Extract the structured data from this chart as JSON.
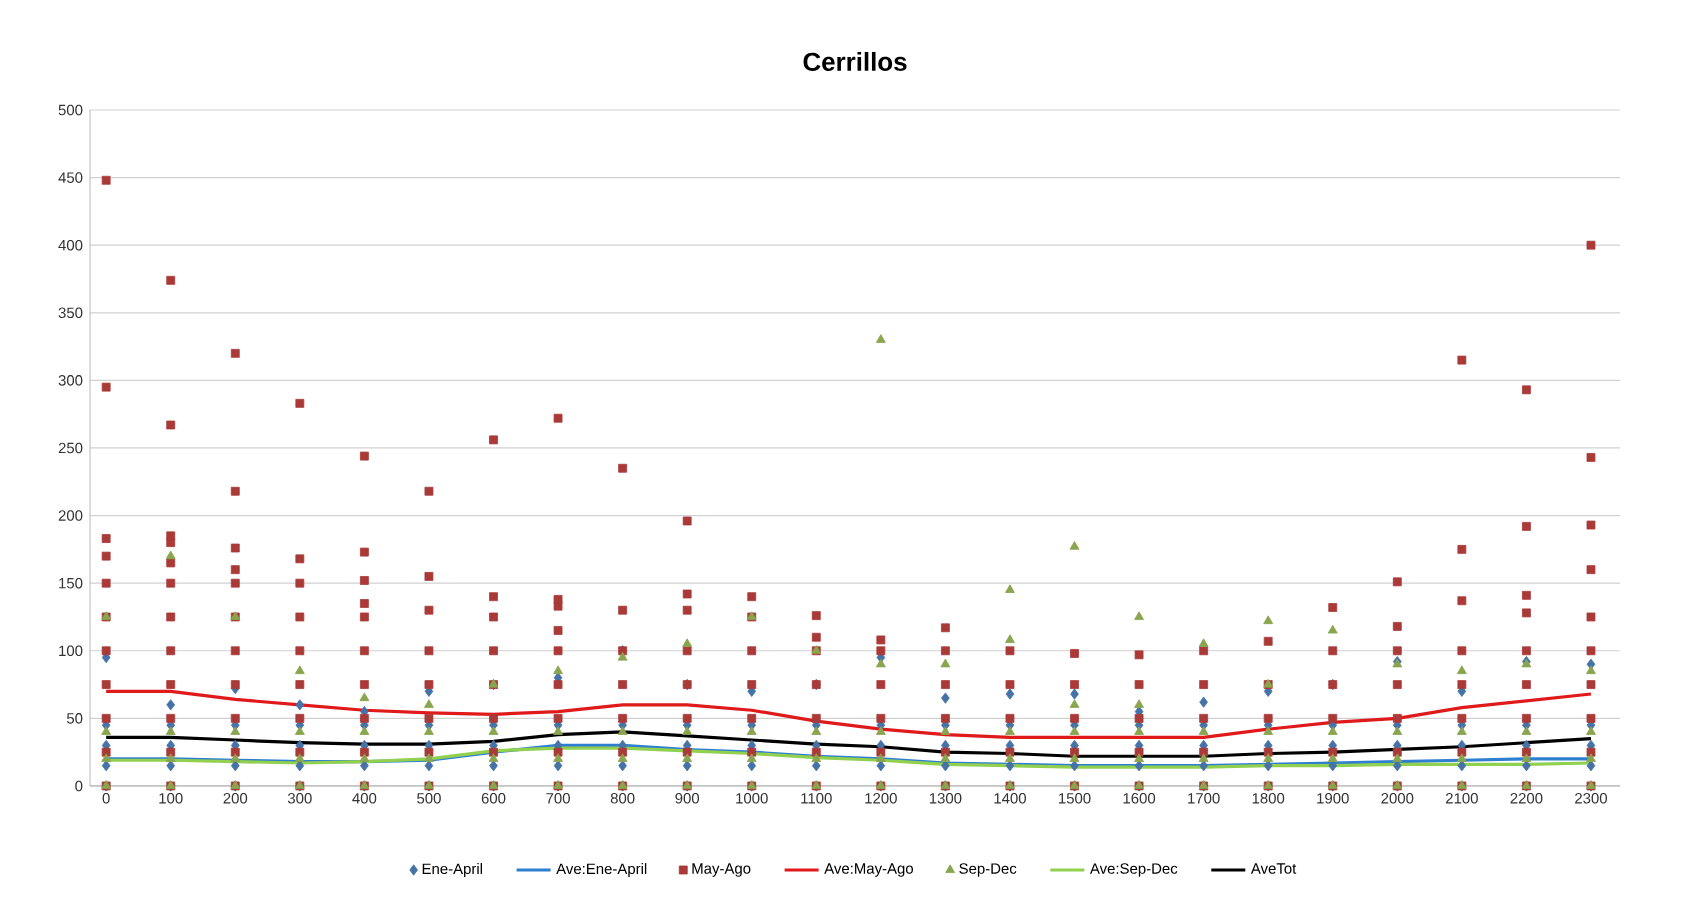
{
  "chart_data": {
    "type": "scatter",
    "title": "Cerrillos",
    "x": [
      0,
      100,
      200,
      300,
      400,
      500,
      600,
      700,
      800,
      900,
      1000,
      1100,
      1200,
      1300,
      1400,
      1500,
      1600,
      1700,
      1800,
      1900,
      2000,
      2100,
      2200,
      2300
    ],
    "xlim": [
      -25,
      2345
    ],
    "xticks": [
      0,
      100,
      200,
      300,
      400,
      500,
      600,
      700,
      800,
      900,
      1000,
      1100,
      1200,
      1300,
      1400,
      1500,
      1600,
      1700,
      1800,
      1900,
      2000,
      2100,
      2200,
      2300
    ],
    "ylim": [
      0,
      500
    ],
    "yticks": [
      0,
      50,
      100,
      150,
      200,
      250,
      300,
      350,
      400,
      450,
      500
    ],
    "grid": "y",
    "legend": "bottom",
    "series": [
      {
        "name": "Ene-April",
        "marker": "diamond",
        "color": "#4572a7",
        "x": [
          0,
          0,
          0,
          0,
          0,
          100,
          100,
          100,
          100,
          100,
          200,
          200,
          200,
          200,
          200,
          300,
          300,
          300,
          300,
          300,
          400,
          400,
          400,
          400,
          400,
          500,
          500,
          500,
          500,
          500,
          600,
          600,
          600,
          600,
          600,
          700,
          700,
          700,
          700,
          700,
          800,
          800,
          800,
          800,
          800,
          900,
          900,
          900,
          900,
          900,
          1000,
          1000,
          1000,
          1000,
          1000,
          1100,
          1100,
          1100,
          1100,
          1100,
          1200,
          1200,
          1200,
          1200,
          1200,
          1300,
          1300,
          1300,
          1300,
          1300,
          1400,
          1400,
          1400,
          1400,
          1400,
          1500,
          1500,
          1500,
          1500,
          1500,
          1600,
          1600,
          1600,
          1600,
          1600,
          1700,
          1700,
          1700,
          1700,
          1700,
          1800,
          1800,
          1800,
          1800,
          1800,
          1900,
          1900,
          1900,
          1900,
          1900,
          2000,
          2000,
          2000,
          2000,
          2000,
          2100,
          2100,
          2100,
          2100,
          2100,
          2200,
          2200,
          2200,
          2200,
          2200,
          2300,
          2300,
          2300,
          2300,
          2300
        ],
        "values": [
          0,
          15,
          30,
          45,
          95,
          0,
          15,
          30,
          45,
          60,
          0,
          15,
          30,
          45,
          72,
          0,
          15,
          30,
          45,
          60,
          0,
          15,
          30,
          45,
          55,
          0,
          15,
          30,
          45,
          70,
          0,
          15,
          30,
          45,
          75,
          0,
          15,
          30,
          45,
          80,
          0,
          15,
          30,
          45,
          100,
          0,
          15,
          30,
          45,
          75,
          0,
          15,
          30,
          45,
          70,
          0,
          15,
          30,
          45,
          75,
          0,
          15,
          30,
          45,
          95,
          0,
          15,
          30,
          45,
          65,
          0,
          15,
          30,
          45,
          68,
          0,
          15,
          30,
          45,
          68,
          0,
          15,
          30,
          45,
          55,
          0,
          15,
          30,
          45,
          62,
          0,
          15,
          30,
          45,
          70,
          0,
          15,
          30,
          45,
          75,
          0,
          15,
          30,
          45,
          92,
          0,
          15,
          30,
          45,
          70,
          0,
          15,
          30,
          45,
          92,
          0,
          15,
          30,
          45,
          90
        ]
      },
      {
        "name": "Ave:Ene-April",
        "type": "line",
        "color": "#2e7fd0",
        "values": [
          20,
          20,
          19,
          18,
          18,
          19,
          25,
          30,
          30,
          27,
          25,
          22,
          20,
          17,
          16,
          15,
          15,
          15,
          16,
          17,
          18,
          19,
          20,
          20
        ]
      },
      {
        "name": "May-Ago",
        "marker": "square",
        "color": "#aa3a38",
        "x": [
          0,
          0,
          0,
          0,
          0,
          0,
          0,
          0,
          0,
          0,
          0,
          100,
          100,
          100,
          100,
          100,
          100,
          100,
          100,
          100,
          100,
          100,
          100,
          200,
          200,
          200,
          200,
          200,
          200,
          200,
          200,
          200,
          200,
          200,
          300,
          300,
          300,
          300,
          300,
          300,
          300,
          300,
          300,
          400,
          400,
          400,
          400,
          400,
          400,
          400,
          400,
          400,
          400,
          500,
          500,
          500,
          500,
          500,
          500,
          500,
          500,
          600,
          600,
          600,
          600,
          600,
          600,
          600,
          600,
          700,
          700,
          700,
          700,
          700,
          700,
          700,
          700,
          700,
          800,
          800,
          800,
          800,
          800,
          800,
          800,
          900,
          900,
          900,
          900,
          900,
          900,
          900,
          900,
          1000,
          1000,
          1000,
          1000,
          1000,
          1000,
          1000,
          1100,
          1100,
          1100,
          1100,
          1100,
          1100,
          1100,
          1200,
          1200,
          1200,
          1200,
          1200,
          1200,
          1300,
          1300,
          1300,
          1300,
          1300,
          1300,
          1400,
          1400,
          1400,
          1400,
          1400,
          1500,
          1500,
          1500,
          1500,
          1500,
          1600,
          1600,
          1600,
          1600,
          1600,
          1700,
          1700,
          1700,
          1700,
          1700,
          1800,
          1800,
          1800,
          1800,
          1800,
          1900,
          1900,
          1900,
          1900,
          1900,
          1900,
          2000,
          2000,
          2000,
          2000,
          2000,
          2000,
          2000,
          2100,
          2100,
          2100,
          2100,
          2100,
          2100,
          2100,
          2100,
          2200,
          2200,
          2200,
          2200,
          2200,
          2200,
          2200,
          2200,
          2200,
          2300,
          2300,
          2300,
          2300,
          2300,
          2300,
          2300,
          2300,
          2300,
          2300
        ],
        "values": [
          0,
          25,
          50,
          75,
          100,
          125,
          150,
          170,
          183,
          295,
          448,
          0,
          25,
          50,
          75,
          100,
          125,
          150,
          165,
          180,
          185,
          267,
          374,
          0,
          25,
          50,
          75,
          100,
          125,
          150,
          160,
          176,
          218,
          320,
          0,
          25,
          50,
          75,
          100,
          125,
          150,
          168,
          283,
          0,
          25,
          50,
          75,
          100,
          125,
          135,
          152,
          173,
          244,
          0,
          25,
          50,
          75,
          100,
          130,
          155,
          218,
          0,
          25,
          50,
          75,
          100,
          125,
          140,
          256,
          0,
          25,
          50,
          75,
          100,
          115,
          133,
          138,
          272,
          0,
          25,
          50,
          75,
          100,
          130,
          235,
          0,
          25,
          50,
          75,
          100,
          130,
          142,
          196,
          0,
          25,
          50,
          75,
          100,
          125,
          140,
          0,
          25,
          50,
          75,
          100,
          110,
          126,
          0,
          25,
          50,
          75,
          100,
          108,
          0,
          25,
          50,
          75,
          100,
          117,
          0,
          25,
          50,
          75,
          100,
          0,
          25,
          50,
          75,
          98,
          0,
          25,
          50,
          75,
          97,
          0,
          25,
          50,
          75,
          100,
          0,
          25,
          50,
          75,
          107,
          0,
          25,
          50,
          75,
          100,
          132,
          0,
          25,
          50,
          75,
          100,
          118,
          151,
          0,
          25,
          50,
          75,
          100,
          137,
          175,
          315,
          0,
          25,
          50,
          75,
          100,
          128,
          141,
          192,
          293,
          0,
          25,
          50,
          75,
          100,
          125,
          160,
          193,
          243,
          400
        ]
      },
      {
        "name": "Ave:May-Ago",
        "type": "line",
        "color": "#e01a1a",
        "values": [
          70,
          70,
          64,
          60,
          56,
          54,
          53,
          55,
          60,
          60,
          56,
          48,
          42,
          38,
          36,
          36,
          36,
          36,
          42,
          47,
          50,
          58,
          63,
          68
        ]
      },
      {
        "name": "Sep-Dec",
        "marker": "triangle",
        "color": "#89a54e",
        "x": [
          0,
          0,
          0,
          0,
          100,
          100,
          100,
          100,
          200,
          200,
          200,
          200,
          300,
          300,
          300,
          300,
          400,
          400,
          400,
          400,
          500,
          500,
          500,
          500,
          600,
          600,
          600,
          600,
          700,
          700,
          700,
          700,
          800,
          800,
          800,
          800,
          900,
          900,
          900,
          900,
          1000,
          1000,
          1000,
          1000,
          1100,
          1100,
          1100,
          1100,
          1200,
          1200,
          1200,
          1200,
          1200,
          1300,
          1300,
          1300,
          1300,
          1400,
          1400,
          1400,
          1400,
          1400,
          1500,
          1500,
          1500,
          1500,
          1500,
          1600,
          1600,
          1600,
          1600,
          1600,
          1700,
          1700,
          1700,
          1700,
          1800,
          1800,
          1800,
          1800,
          1800,
          1900,
          1900,
          1900,
          1900,
          2000,
          2000,
          2000,
          2000,
          2100,
          2100,
          2100,
          2100,
          2200,
          2200,
          2200,
          2200,
          2300,
          2300,
          2300,
          2300
        ],
        "values": [
          0,
          20,
          40,
          125,
          0,
          20,
          40,
          170,
          0,
          20,
          40,
          125,
          0,
          20,
          40,
          85,
          0,
          20,
          40,
          65,
          0,
          20,
          40,
          60,
          0,
          20,
          40,
          75,
          0,
          20,
          40,
          85,
          0,
          20,
          40,
          95,
          0,
          20,
          40,
          105,
          0,
          20,
          40,
          125,
          0,
          20,
          40,
          100,
          0,
          20,
          40,
          90,
          330,
          0,
          20,
          40,
          90,
          0,
          20,
          40,
          108,
          145,
          0,
          20,
          40,
          60,
          177,
          0,
          20,
          40,
          60,
          125,
          0,
          20,
          40,
          105,
          0,
          20,
          40,
          75,
          122,
          0,
          20,
          40,
          115,
          0,
          20,
          40,
          90,
          0,
          20,
          40,
          85,
          0,
          20,
          40,
          90,
          0,
          20,
          40,
          85
        ]
      },
      {
        "name": "Ave:Sep-Dec",
        "type": "line",
        "color": "#92d050",
        "values": [
          19,
          19,
          18,
          17,
          18,
          20,
          26,
          28,
          28,
          26,
          24,
          21,
          19,
          16,
          15,
          14,
          14,
          14,
          15,
          15,
          16,
          16,
          16,
          17
        ]
      },
      {
        "name": "AveTot",
        "type": "line",
        "color": "#000000",
        "values": [
          36,
          36,
          34,
          32,
          31,
          31,
          33,
          38,
          40,
          37,
          34,
          31,
          29,
          25,
          24,
          22,
          22,
          22,
          24,
          25,
          27,
          29,
          32,
          35
        ]
      }
    ]
  }
}
